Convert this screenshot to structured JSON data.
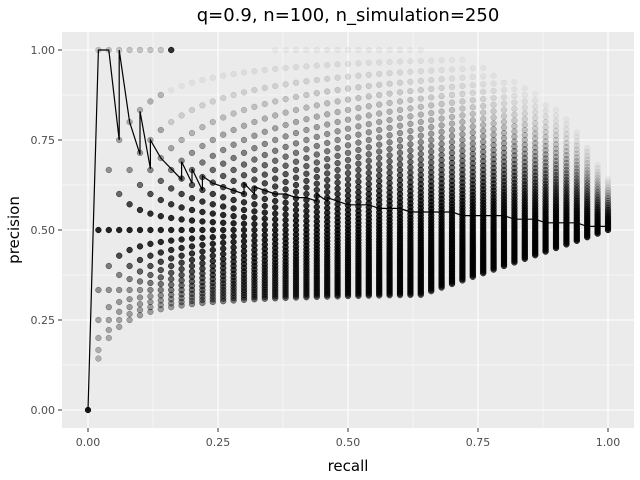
{
  "chart_data": {
    "type": "scatter",
    "title": "q=0.9, n=100, n_simulation=250",
    "xlabel": "recall",
    "ylabel": "precision",
    "xlim": [
      -0.05,
      1.05
    ],
    "ylim": [
      -0.05,
      1.05
    ],
    "x_ticks": [
      0.0,
      0.25,
      0.5,
      0.75,
      1.0
    ],
    "x_tick_labels": [
      "0.00",
      "0.25",
      "0.50",
      "0.75",
      "1.00"
    ],
    "y_ticks": [
      0.0,
      0.25,
      0.5,
      0.75,
      1.0
    ],
    "y_tick_labels": [
      "0.00",
      "0.25",
      "0.50",
      "0.75",
      "1.00"
    ],
    "grid": true,
    "legend": "none",
    "background_color": "#ebebeb",
    "grid_color": "#ffffff",
    "point_color": "#000000",
    "line_color": "#000000",
    "series": [
      {
        "type": "scatter",
        "description_source": "simulated precision-recall points at recall = k/50 with precision = m/t, drawn semi-transparent",
        "x_step": 0.02,
        "precision_denominators_max": 100
      },
      {
        "type": "line",
        "x": [
          0.0,
          0.02,
          0.04,
          0.06,
          0.06,
          0.08,
          0.1,
          0.1,
          0.12,
          0.12,
          0.14,
          0.16,
          0.18,
          0.18,
          0.2,
          0.2,
          0.22,
          0.22,
          0.24,
          0.26,
          0.28,
          0.3,
          0.3,
          0.32,
          0.32,
          0.34,
          0.36,
          0.38,
          0.4,
          0.42,
          0.44,
          0.44,
          0.46,
          0.46,
          0.48,
          0.5,
          0.52,
          0.54,
          0.56,
          0.58,
          0.6,
          0.62,
          0.64,
          0.66,
          0.68,
          0.7,
          0.72,
          0.74,
          0.76,
          0.78,
          0.8,
          0.82,
          0.84,
          0.86,
          0.88,
          0.9,
          0.92,
          0.94,
          0.96,
          0.98,
          1.0
        ],
        "y": [
          0.0,
          1.0,
          1.0,
          0.75,
          1.0,
          0.8,
          0.71,
          0.83,
          0.67,
          0.75,
          0.7,
          0.67,
          0.64,
          0.69,
          0.63,
          0.67,
          0.61,
          0.65,
          0.63,
          0.62,
          0.61,
          0.6,
          0.63,
          0.6,
          0.62,
          0.61,
          0.6,
          0.6,
          0.59,
          0.59,
          0.58,
          0.6,
          0.58,
          0.59,
          0.58,
          0.57,
          0.57,
          0.57,
          0.56,
          0.56,
          0.56,
          0.55,
          0.55,
          0.55,
          0.55,
          0.55,
          0.54,
          0.54,
          0.54,
          0.54,
          0.54,
          0.53,
          0.53,
          0.53,
          0.52,
          0.52,
          0.52,
          0.52,
          0.51,
          0.51,
          0.51
        ]
      }
    ]
  }
}
